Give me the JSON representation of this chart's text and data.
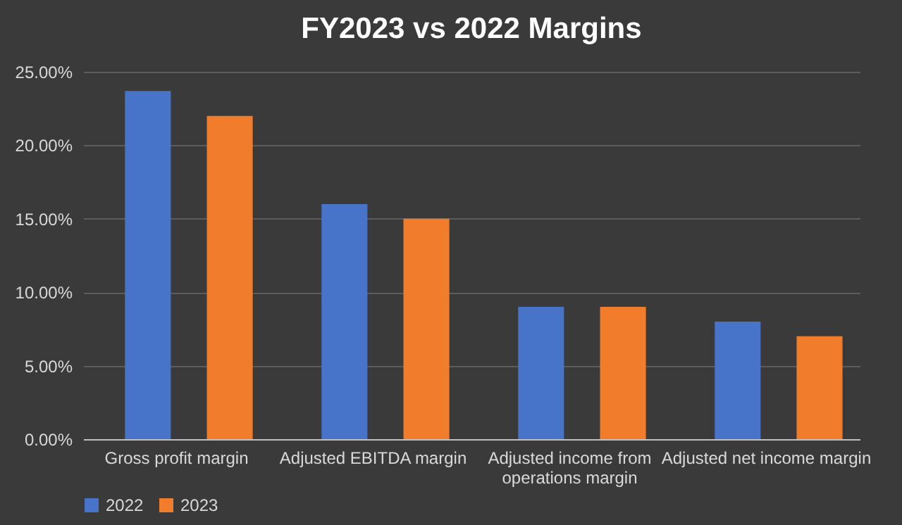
{
  "chart_data": {
    "type": "bar",
    "title": "FY2023 vs 2022 Margins",
    "categories": [
      "Gross profit margin",
      "Adjusted EBITDA margin",
      "Adjusted income from operations margin",
      "Adjusted net income margin"
    ],
    "series": [
      {
        "name": "2022",
        "color": "#4774c9",
        "values": [
          23.7,
          16,
          9,
          8
        ]
      },
      {
        "name": "2023",
        "color": "#f07c2c",
        "values": [
          22,
          15,
          9,
          7
        ]
      }
    ],
    "ylim": [
      0,
      25
    ],
    "yticks": [
      {
        "value": 0,
        "label": "0.00%"
      },
      {
        "value": 5,
        "label": "5.00%"
      },
      {
        "value": 10,
        "label": "10.00%"
      },
      {
        "value": 15,
        "label": "15.00%"
      },
      {
        "value": 20,
        "label": "20.00%"
      },
      {
        "value": 25,
        "label": "25.00%"
      }
    ],
    "grid": "y",
    "legend": "bottom"
  }
}
